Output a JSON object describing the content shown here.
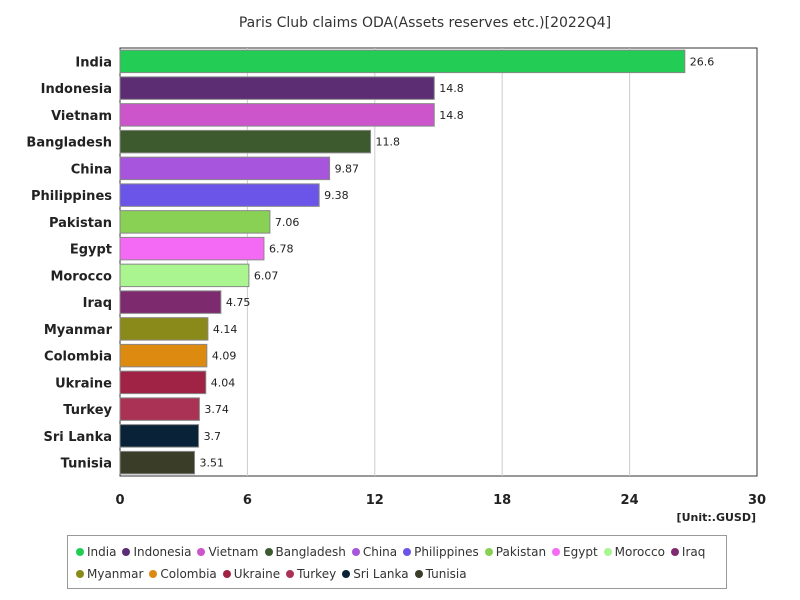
{
  "chart_data": {
    "type": "bar",
    "orientation": "horizontal",
    "title": "Paris Club claims ODA(Assets reserves etc.)[2022Q4]",
    "unit_label": "[Unit:.GUSD]",
    "categories": [
      "India",
      "Indonesia",
      "Vietnam",
      "Bangladesh",
      "China",
      "Philippines",
      "Pakistan",
      "Egypt",
      "Morocco",
      "Iraq",
      "Myanmar",
      "Colombia",
      "Ukraine",
      "Turkey",
      "Sri Lanka",
      "Tunisia"
    ],
    "values": [
      26.6,
      14.8,
      14.8,
      11.8,
      9.87,
      9.38,
      7.06,
      6.78,
      6.07,
      4.75,
      4.14,
      4.09,
      4.04,
      3.74,
      3.7,
      3.51
    ],
    "value_labels": [
      "26.6",
      "14.8",
      "14.8",
      "11.8",
      "9.87",
      "9.38",
      "7.06",
      "6.78",
      "6.07",
      "4.75",
      "4.14",
      "4.09",
      "4.04",
      "3.74",
      "3.7",
      "3.51"
    ],
    "colors": [
      "#22cc55",
      "#5c2d73",
      "#cc55cc",
      "#3d5a2e",
      "#a855dd",
      "#6a55e8",
      "#88d155",
      "#f56af5",
      "#aaf590",
      "#7d2a6e",
      "#8a8a1a",
      "#dd8a11",
      "#a02244",
      "#aa3355",
      "#0a2238",
      "#3a3d28"
    ],
    "xlim": [
      0,
      30
    ],
    "xticks": [
      0,
      6,
      12,
      18,
      24,
      30
    ],
    "grid": true,
    "legend_position": "bottom"
  }
}
